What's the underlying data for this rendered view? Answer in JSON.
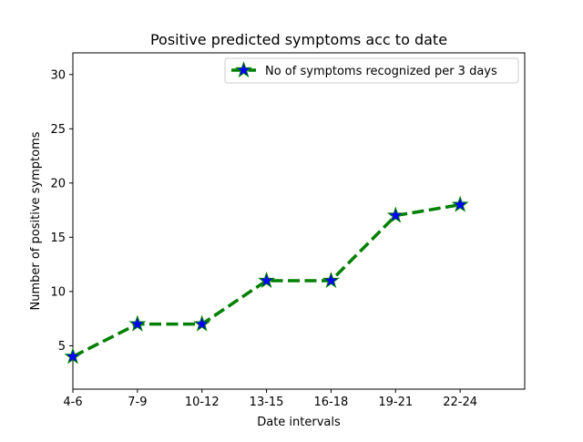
{
  "chart_data": {
    "type": "line",
    "title": "Positive predicted symptoms acc to date",
    "xlabel": "Date intervals",
    "ylabel": "Number of positive symptoms",
    "categories": [
      "4-6",
      "7-9",
      "10-12",
      "13-15",
      "16-18",
      "19-21",
      "22-24"
    ],
    "series": [
      {
        "name": "No of symptoms recognized per 3 days",
        "values": [
          4,
          7,
          7,
          11,
          11,
          17,
          18
        ],
        "line_color": "#008000",
        "line_style": "dashed",
        "marker": "star",
        "marker_fill": "#0000ff",
        "marker_edge": "#008000"
      }
    ],
    "xlim": [
      0,
      7
    ],
    "ylim": [
      1,
      32
    ],
    "yticks": [
      5,
      10,
      15,
      20,
      25,
      30
    ],
    "grid": false,
    "legend_position": "upper-right"
  }
}
